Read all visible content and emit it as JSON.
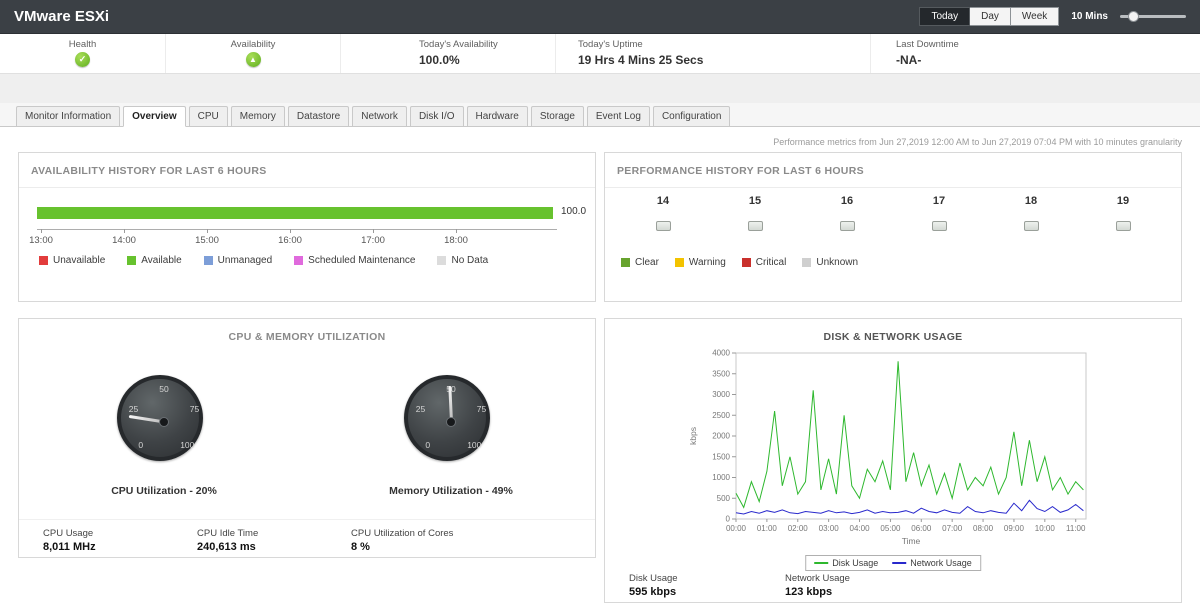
{
  "header": {
    "title": "VMware ESXi",
    "range_options": [
      "Today",
      "Day",
      "Week"
    ],
    "active_range": "Today",
    "granularity_label": "10 Mins"
  },
  "stats": [
    {
      "label": "Health",
      "icon": "health-check",
      "value": ""
    },
    {
      "label": "Availability",
      "icon": "availability-up",
      "value": ""
    },
    {
      "label": "Today's Availability",
      "value": "100.0%"
    },
    {
      "label": "Today's Uptime",
      "value": "19 Hrs 4 Mins 25 Secs"
    },
    {
      "label": "Last Downtime",
      "value": "-NA-"
    }
  ],
  "tabs": {
    "items": [
      "Monitor Information",
      "Overview",
      "CPU",
      "Memory",
      "Datastore",
      "Network",
      "Disk I/O",
      "Hardware",
      "Storage",
      "Event Log",
      "Configuration"
    ],
    "active": "Overview"
  },
  "metrics_note": "Performance metrics from Jun 27,2019 12:00 AM to Jun 27,2019 07:04 PM with 10 minutes granularity",
  "availability_panel": {
    "title": "AVAILABILITY HISTORY FOR LAST 6 HOURS",
    "bar_value_label": "100.0",
    "available_color": "#67c22e",
    "x_ticks": [
      "13:00",
      "14:00",
      "15:00",
      "16:00",
      "17:00",
      "18:00"
    ],
    "legend": [
      {
        "label": "Unavailable",
        "color": "#e23c3c"
      },
      {
        "label": "Available",
        "color": "#67c22e"
      },
      {
        "label": "Unmanaged",
        "color": "#7d9ed8"
      },
      {
        "label": "Scheduled Maintenance",
        "color": "#e06add"
      },
      {
        "label": "No Data",
        "color": "#dcdcdc"
      }
    ]
  },
  "performance_panel": {
    "title": "PERFORMANCE HISTORY FOR LAST 6 HOURS",
    "hours": [
      "14",
      "15",
      "16",
      "17",
      "18",
      "19"
    ],
    "statuses": [
      "Clear",
      "Clear",
      "Clear",
      "Clear",
      "Clear",
      "Clear"
    ],
    "legend": [
      {
        "label": "Clear",
        "color": "#67a32e"
      },
      {
        "label": "Warning",
        "color": "#f3c300"
      },
      {
        "label": "Critical",
        "color": "#c9302c"
      },
      {
        "label": "Unknown",
        "color": "#cfcfcf"
      }
    ]
  },
  "cpu_memory_panel": {
    "title": "CPU & MEMORY UTILIZATION",
    "gauge_scale": [
      0,
      25,
      50,
      75,
      100
    ],
    "gauges": [
      {
        "name": "CPU",
        "value": 20,
        "label": "CPU Utilization - 20%"
      },
      {
        "name": "Memory",
        "value": 49,
        "label": "Memory Utilization - 49%"
      }
    ],
    "stats": [
      {
        "label": "CPU Usage",
        "value": "8,011 MHz"
      },
      {
        "label": "CPU Idle Time",
        "value": "240,613 ms"
      },
      {
        "label": "CPU Utilization of Cores",
        "value": "8 %"
      }
    ]
  },
  "disk_network_panel": {
    "title": "DISK & NETWORK USAGE",
    "stats": [
      {
        "label": "Disk Usage",
        "value": "595 kbps"
      },
      {
        "label": "Network Usage",
        "value": "123 kbps"
      }
    ]
  },
  "chart_data": [
    {
      "type": "bar",
      "title": "AVAILABILITY HISTORY FOR LAST 6 HOURS",
      "orientation": "horizontal-timeline",
      "series": [
        {
          "name": "Available",
          "color": "#67c22e",
          "start": "13:00",
          "end": "19:04",
          "value": 100.0
        }
      ],
      "x_ticks": [
        "13:00",
        "14:00",
        "15:00",
        "16:00",
        "17:00",
        "18:00"
      ],
      "legend": [
        "Unavailable",
        "Available",
        "Unmanaged",
        "Scheduled Maintenance",
        "No Data"
      ]
    },
    {
      "type": "table",
      "title": "PERFORMANCE HISTORY FOR LAST 6 HOURS",
      "categories": [
        "14",
        "15",
        "16",
        "17",
        "18",
        "19"
      ],
      "values": [
        "Clear",
        "Clear",
        "Clear",
        "Clear",
        "Clear",
        "Clear"
      ],
      "legend": [
        "Clear",
        "Warning",
        "Critical",
        "Unknown"
      ]
    },
    {
      "type": "gauge",
      "title": "CPU Utilization",
      "value": 20,
      "range": [
        0,
        100
      ]
    },
    {
      "type": "gauge",
      "title": "Memory Utilization",
      "value": 49,
      "range": [
        0,
        100
      ]
    },
    {
      "type": "line",
      "title": "DISK & NETWORK USAGE",
      "xlabel": "Time",
      "ylabel": "kbps",
      "ylim": [
        0,
        4000
      ],
      "legend_position": "bottom",
      "x_tick_labels": [
        "00:00",
        "01:00",
        "02:00",
        "03:00",
        "04:00",
        "05:00",
        "06:00",
        "07:00",
        "08:00",
        "09:00",
        "10:00",
        "11:00"
      ],
      "x": [
        0,
        15,
        30,
        45,
        60,
        75,
        90,
        105,
        120,
        135,
        150,
        165,
        180,
        195,
        210,
        225,
        240,
        255,
        270,
        285,
        300,
        315,
        330,
        345,
        360,
        375,
        390,
        405,
        420,
        435,
        450,
        465,
        480,
        495,
        510,
        525,
        540,
        555,
        570,
        585,
        600,
        615,
        630,
        645,
        660,
        675
      ],
      "series": [
        {
          "name": "Disk Usage",
          "color": "#2eb82e",
          "values": [
            620,
            280,
            900,
            420,
            1150,
            2600,
            800,
            1500,
            600,
            900,
            3100,
            700,
            1450,
            600,
            2500,
            800,
            500,
            1200,
            900,
            1400,
            700,
            3800,
            900,
            1600,
            800,
            1300,
            600,
            1100,
            500,
            1350,
            700,
            1000,
            800,
            1250,
            600,
            1000,
            2100,
            800,
            1900,
            900,
            1500,
            700,
            1000,
            600,
            900,
            700
          ]
        },
        {
          "name": "Network Usage",
          "color": "#2929cc",
          "values": [
            150,
            120,
            180,
            140,
            200,
            160,
            220,
            150,
            130,
            180,
            160,
            140,
            200,
            150,
            170,
            130,
            160,
            220,
            140,
            180,
            150,
            160,
            200,
            140,
            260,
            180,
            150,
            220,
            160,
            140,
            300,
            180,
            150,
            200,
            160,
            140,
            380,
            200,
            450,
            250,
            180,
            300,
            160,
            220,
            350,
            200
          ]
        }
      ]
    }
  ]
}
